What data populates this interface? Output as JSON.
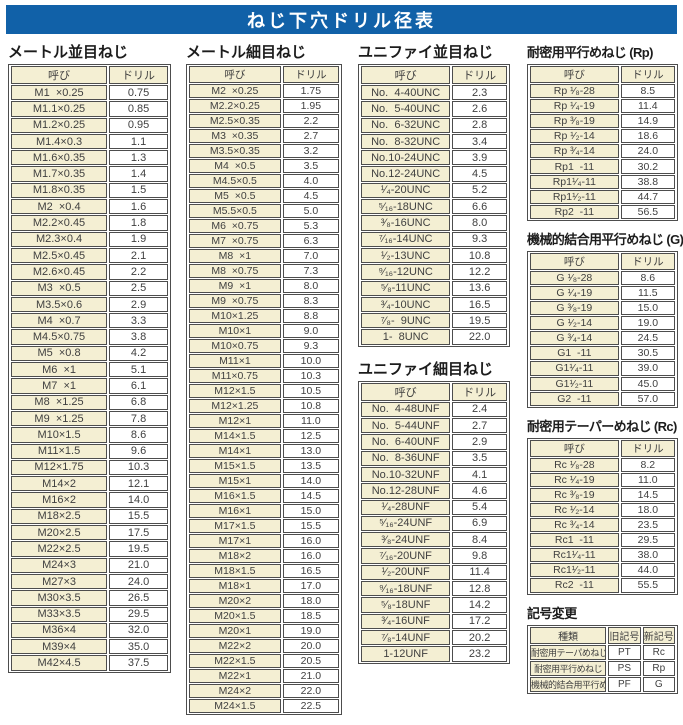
{
  "banner": {
    "title": "ねじ下穴ドリル径表"
  },
  "colors": {
    "banner_blue": "#1161a8",
    "cell_cream": "#f4efd3",
    "border_gray": "#4d4d4d"
  },
  "col_headers": {
    "name": "呼び",
    "drill": "ドリル"
  },
  "sections": [
    {
      "title": "メートル並目ねじ",
      "rows": [
        [
          "M1  ×0.25",
          "0.75"
        ],
        [
          "M1.1×0.25",
          "0.85"
        ],
        [
          "M1.2×0.25",
          "0.95"
        ],
        [
          "M1.4×0.3",
          "1.1"
        ],
        [
          "M1.6×0.35",
          "1.3"
        ],
        [
          "M1.7×0.35",
          "1.4"
        ],
        [
          "M1.8×0.35",
          "1.5"
        ],
        [
          "M2  ×0.4",
          "1.6"
        ],
        [
          "M2.2×0.45",
          "1.8"
        ],
        [
          "M2.3×0.4",
          "1.9"
        ],
        [
          "M2.5×0.45",
          "2.1"
        ],
        [
          "M2.6×0.45",
          "2.2"
        ],
        [
          "M3  ×0.5",
          "2.5"
        ],
        [
          "M3.5×0.6",
          "2.9"
        ],
        [
          "M4  ×0.7",
          "3.3"
        ],
        [
          "M4.5×0.75",
          "3.8"
        ],
        [
          "M5  ×0.8",
          "4.2"
        ],
        [
          "M6  ×1",
          "5.1"
        ],
        [
          "M7  ×1",
          "6.1"
        ],
        [
          "M8  ×1.25",
          "6.8"
        ],
        [
          "M9  ×1.25",
          "7.8"
        ],
        [
          "M10×1.5",
          "8.6"
        ],
        [
          "M11×1.5",
          "9.6"
        ],
        [
          "M12×1.75",
          "10.3"
        ],
        [
          "M14×2",
          "12.1"
        ],
        [
          "M16×2",
          "14.0"
        ],
        [
          "M18×2.5",
          "15.5"
        ],
        [
          "M20×2.5",
          "17.5"
        ],
        [
          "M22×2.5",
          "19.5"
        ],
        [
          "M24×3",
          "21.0"
        ],
        [
          "M27×3",
          "24.0"
        ],
        [
          "M30×3.5",
          "26.5"
        ],
        [
          "M33×3.5",
          "29.5"
        ],
        [
          "M36×4",
          "32.0"
        ],
        [
          "M39×4",
          "35.0"
        ],
        [
          "M42×4.5",
          "37.5"
        ]
      ]
    },
    {
      "title": "メートル細目ねじ",
      "rows": [
        [
          "M2  ×0.25",
          "1.75"
        ],
        [
          "M2.2×0.25",
          "1.95"
        ],
        [
          "M2.5×0.35",
          "2.2"
        ],
        [
          "M3  ×0.35",
          "2.7"
        ],
        [
          "M3.5×0.35",
          "3.2"
        ],
        [
          "M4  ×0.5",
          "3.5"
        ],
        [
          "M4.5×0.5",
          "4.0"
        ],
        [
          "M5  ×0.5",
          "4.5"
        ],
        [
          "M5.5×0.5",
          "5.0"
        ],
        [
          "M6  ×0.75",
          "5.3"
        ],
        [
          "M7  ×0.75",
          "6.3"
        ],
        [
          "M8  ×1",
          "7.0"
        ],
        [
          "M8  ×0.75",
          "7.3"
        ],
        [
          "M9  ×1",
          "8.0"
        ],
        [
          "M9  ×0.75",
          "8.3"
        ],
        [
          "M10×1.25",
          "8.8"
        ],
        [
          "M10×1",
          "9.0"
        ],
        [
          "M10×0.75",
          "9.3"
        ],
        [
          "M11×1",
          "10.0"
        ],
        [
          "M11×0.75",
          "10.3"
        ],
        [
          "M12×1.5",
          "10.5"
        ],
        [
          "M12×1.25",
          "10.8"
        ],
        [
          "M12×1",
          "11.0"
        ],
        [
          "M14×1.5",
          "12.5"
        ],
        [
          "M14×1",
          "13.0"
        ],
        [
          "M15×1.5",
          "13.5"
        ],
        [
          "M15×1",
          "14.0"
        ],
        [
          "M16×1.5",
          "14.5"
        ],
        [
          "M16×1",
          "15.0"
        ],
        [
          "M17×1.5",
          "15.5"
        ],
        [
          "M17×1",
          "16.0"
        ],
        [
          "M18×2",
          "16.0"
        ],
        [
          "M18×1.5",
          "16.5"
        ],
        [
          "M18×1",
          "17.0"
        ],
        [
          "M20×2",
          "18.0"
        ],
        [
          "M20×1.5",
          "18.5"
        ],
        [
          "M20×1",
          "19.0"
        ],
        [
          "M22×2",
          "20.0"
        ],
        [
          "M22×1.5",
          "20.5"
        ],
        [
          "M22×1",
          "21.0"
        ],
        [
          "M24×2",
          "22.0"
        ],
        [
          "M24×1.5",
          "22.5"
        ]
      ]
    },
    {
      "title": "ユニファイ並目ねじ",
      "rows": [
        [
          "No.  4-40UNC",
          "2.3"
        ],
        [
          "No.  5-40UNC",
          "2.6"
        ],
        [
          "No.  6-32UNC",
          "2.8"
        ],
        [
          "No.  8-32UNC",
          "3.4"
        ],
        [
          "No.10-24UNC",
          "3.9"
        ],
        [
          "No.12-24UNC",
          "4.5"
        ],
        [
          "¹⁄₄-20UNC",
          "5.2"
        ],
        [
          "⁵⁄₁₆-18UNC",
          "6.6"
        ],
        [
          "³⁄₈-16UNC",
          "8.0"
        ],
        [
          "⁷⁄₁₆-14UNC",
          "9.3"
        ],
        [
          "¹⁄₂-13UNC",
          "10.8"
        ],
        [
          "⁹⁄₁₆-12UNC",
          "12.2"
        ],
        [
          "⁵⁄₈-11UNC",
          "13.6"
        ],
        [
          "³⁄₄-10UNC",
          "16.5"
        ],
        [
          "⁷⁄₈-  9UNC",
          "19.5"
        ],
        [
          "1-  8UNC",
          "22.0"
        ]
      ]
    },
    {
      "title": "ユニファイ細目ねじ",
      "rows": [
        [
          "No.  4-48UNF",
          "2.4"
        ],
        [
          "No.  5-44UNF",
          "2.7"
        ],
        [
          "No.  6-40UNF",
          "2.9"
        ],
        [
          "No.  8-36UNF",
          "3.5"
        ],
        [
          "No.10-32UNF",
          "4.1"
        ],
        [
          "No.12-28UNF",
          "4.6"
        ],
        [
          "¹⁄₄-28UNF",
          "5.4"
        ],
        [
          "⁵⁄₁₆-24UNF",
          "6.9"
        ],
        [
          "³⁄₈-24UNF",
          "8.4"
        ],
        [
          "⁷⁄₁₆-20UNF",
          "9.8"
        ],
        [
          "¹⁄₂-20UNF",
          "11.4"
        ],
        [
          "⁹⁄₁₆-18UNF",
          "12.8"
        ],
        [
          "⁵⁄₈-18UNF",
          "14.2"
        ],
        [
          "³⁄₄-16UNF",
          "17.2"
        ],
        [
          "⁷⁄₈-14UNF",
          "20.2"
        ],
        [
          "1-12UNF",
          "23.2"
        ]
      ]
    },
    {
      "title": "耐密用平行めねじ (Rp)",
      "rows": [
        [
          "Rp ¹⁄₈-28",
          "8.5"
        ],
        [
          "Rp ¹⁄₄-19",
          "11.4"
        ],
        [
          "Rp ³⁄₈-19",
          "14.9"
        ],
        [
          "Rp ¹⁄₂-14",
          "18.6"
        ],
        [
          "Rp ³⁄₄-14",
          "24.0"
        ],
        [
          "Rp1  -11",
          "30.2"
        ],
        [
          "Rp1¹⁄₄-11",
          "38.8"
        ],
        [
          "Rp1¹⁄₂-11",
          "44.7"
        ],
        [
          "Rp2  -11",
          "56.5"
        ]
      ]
    },
    {
      "title": "機械的結合用平行めねじ (G)",
      "rows": [
        [
          "G ¹⁄₈-28",
          "8.6"
        ],
        [
          "G ¹⁄₄-19",
          "11.5"
        ],
        [
          "G ³⁄₈-19",
          "15.0"
        ],
        [
          "G ¹⁄₂-14",
          "19.0"
        ],
        [
          "G ³⁄₄-14",
          "24.5"
        ],
        [
          "G1  -11",
          "30.5"
        ],
        [
          "G1¹⁄₄-11",
          "39.0"
        ],
        [
          "G1¹⁄₂-11",
          "45.0"
        ],
        [
          "G2  -11",
          "57.0"
        ]
      ]
    },
    {
      "title": "耐密用テーパーめねじ (Rc)",
      "rows": [
        [
          "Rc ¹⁄₈-28",
          "8.2"
        ],
        [
          "Rc ¹⁄₄-19",
          "11.0"
        ],
        [
          "Rc ³⁄₈-19",
          "14.5"
        ],
        [
          "Rc ¹⁄₂-14",
          "18.0"
        ],
        [
          "Rc ³⁄₄-14",
          "23.5"
        ],
        [
          "Rc1  -11",
          "29.5"
        ],
        [
          "Rc1¹⁄₄-11",
          "38.0"
        ],
        [
          "Rc1¹⁄₂-11",
          "44.0"
        ],
        [
          "Rc2  -11",
          "55.5"
        ]
      ]
    }
  ],
  "symbol_change": {
    "title": "記号変更",
    "headers": [
      "種類",
      "旧記号",
      "新記号"
    ],
    "rows": [
      [
        "耐密用テーパめねじ",
        "PT",
        "Rc"
      ],
      [
        "耐密用平行めねじ",
        "PS",
        "Rp"
      ],
      [
        "機械的結合用平行めねじ",
        "PF",
        "G"
      ]
    ]
  }
}
